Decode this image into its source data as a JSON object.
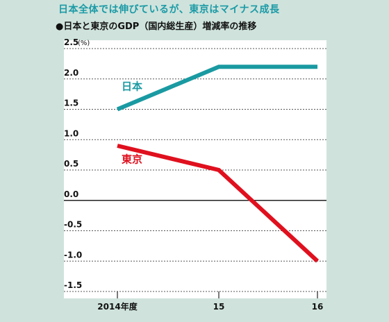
{
  "header": {
    "title": "日本全体では伸びているが、東京はマイナス成長",
    "subtitle": "●日本と東京のGDP（国内総生産）増減率の推移"
  },
  "chart_data": {
    "type": "line",
    "title": "日本全体では伸びているが、東京はマイナス成長",
    "subtitle": "●日本と東京のGDP（国内総生産）増減率の推移",
    "unit": "(%)",
    "categories": [
      "2014年度",
      "15",
      "16"
    ],
    "series": [
      {
        "name": "日本",
        "values": [
          1.5,
          2.2,
          2.2
        ],
        "color": "#1a9aa2"
      },
      {
        "name": "東京",
        "values": [
          0.9,
          0.5,
          -1.0
        ],
        "color": "#e0101e"
      }
    ],
    "yticks": [
      "2.5",
      "2.0",
      "1.5",
      "1.0",
      "0.5",
      "0.0",
      "-0.5",
      "-1.0",
      "-1.5"
    ],
    "ylim": [
      -1.5,
      2.5
    ],
    "grid": "dotted horizontal",
    "zero_line": true
  }
}
